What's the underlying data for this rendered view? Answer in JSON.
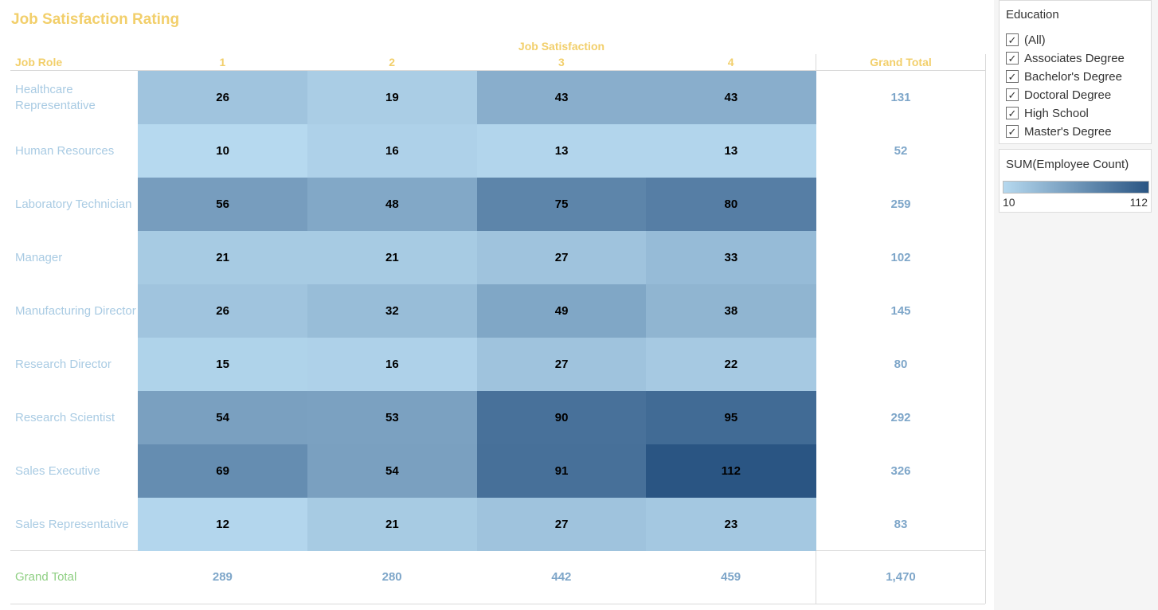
{
  "title": "Job Satisfaction Rating",
  "column_group_label": "Job Satisfaction",
  "row_header": "Job Role",
  "grand_total_label": "Grand Total",
  "chart_data": {
    "type": "heatmap",
    "measure": "SUM(Employee Count)",
    "columns": [
      "1",
      "2",
      "3",
      "4"
    ],
    "rows": [
      {
        "label": "Healthcare Representative",
        "values": [
          26,
          19,
          43,
          43
        ],
        "total": "131"
      },
      {
        "label": "Human Resources",
        "values": [
          10,
          16,
          13,
          13
        ],
        "total": "52"
      },
      {
        "label": "Laboratory Technician",
        "values": [
          56,
          48,
          75,
          80
        ],
        "total": "259"
      },
      {
        "label": "Manager",
        "values": [
          21,
          21,
          27,
          33
        ],
        "total": "102"
      },
      {
        "label": "Manufacturing Director",
        "values": [
          26,
          32,
          49,
          38
        ],
        "total": "145"
      },
      {
        "label": "Research Director",
        "values": [
          15,
          16,
          27,
          22
        ],
        "total": "80"
      },
      {
        "label": "Research Scientist",
        "values": [
          54,
          53,
          90,
          95
        ],
        "total": "292"
      },
      {
        "label": "Sales Executive",
        "values": [
          69,
          54,
          91,
          112
        ],
        "total": "326"
      },
      {
        "label": "Sales Representative",
        "values": [
          12,
          21,
          27,
          23
        ],
        "total": "83"
      }
    ],
    "column_totals": [
      "289",
      "280",
      "442",
      "459"
    ],
    "grand_total": "1,470",
    "color_scale": {
      "min": 10,
      "max": 112,
      "min_color": "#b6d9ef",
      "max_color": "#2a5583"
    }
  },
  "filter": {
    "title": "Education",
    "items": [
      "(All)",
      "Associates Degree",
      "Bachelor's Degree",
      "Doctoral Degree",
      "High School",
      "Master's Degree"
    ]
  },
  "legend": {
    "title": "SUM(Employee Count)",
    "min_label": "10",
    "max_label": "112"
  },
  "colors": {
    "header": "#f2cf6b",
    "row_label": "#a9cbe3",
    "totals": "#7ea6c9",
    "grand_total_label": "#8fcf83"
  }
}
